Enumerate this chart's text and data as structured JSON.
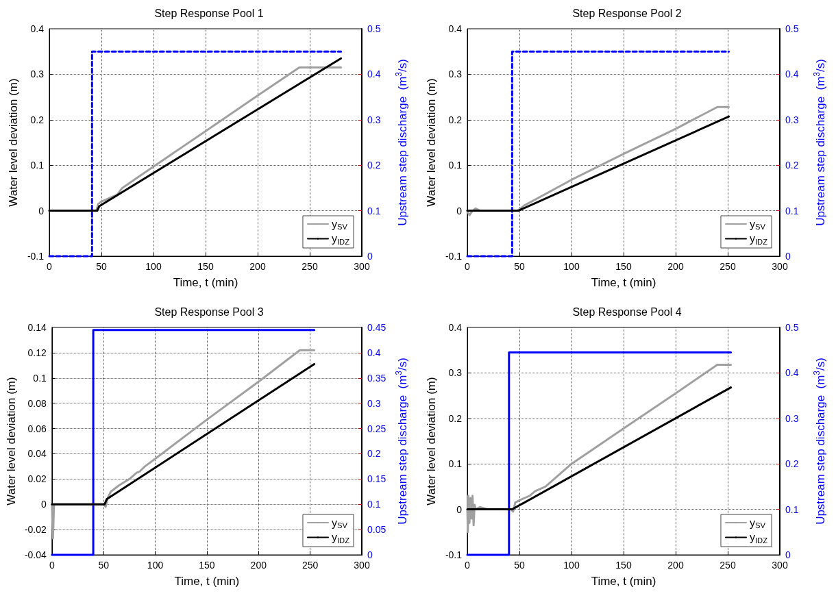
{
  "chart_data": [
    {
      "type": "line",
      "title": "Step Response Pool 1",
      "xlabel": "Time, t (min)",
      "ylabel": "Water level deviation (m)",
      "y2label": "Upstream step discharge  (m$^{3}$/s)",
      "xlim": [
        0,
        300
      ],
      "xticks": [
        0,
        50,
        100,
        150,
        200,
        250,
        300
      ],
      "ylim": [
        -0.1,
        0.4
      ],
      "yticks": [
        -0.1,
        0,
        0.1,
        0.2,
        0.3,
        0.4
      ],
      "y2lim": [
        0,
        0.5
      ],
      "y2ticks": [
        0,
        0.1,
        0.2,
        0.3,
        0.4,
        0.5
      ],
      "grid": true,
      "legend": "bottom right",
      "marker": "none",
      "series": [
        {
          "name": "y$_{SV}$",
          "color": "#a0a0a0",
          "x": [
            0,
            45,
            47,
            50,
            60,
            65,
            70,
            100,
            150,
            200,
            240,
            280
          ],
          "values": [
            0,
            0,
            0.015,
            0.02,
            0.03,
            0.035,
            0.05,
            0.097,
            0.175,
            0.253,
            0.315,
            0.315
          ]
        },
        {
          "name": "y$_{IDZ}$",
          "color": "#000000",
          "x": [
            0,
            46,
            48,
            280
          ],
          "values": [
            0,
            0,
            0.01,
            0.335
          ]
        },
        {
          "color": "#0000ff",
          "axis": "y2",
          "line_style": "dashed",
          "x": [
            0,
            41,
            41,
            280
          ],
          "values": [
            0,
            0,
            0.45,
            0.45
          ]
        }
      ]
    },
    {
      "type": "line",
      "title": "Step Response Pool 2",
      "xlabel": "Time, t (min)",
      "ylabel": "Water level deviation (m)",
      "y2label": "Upstream step discharge  (m$^{3}$/s)",
      "xlim": [
        0,
        300
      ],
      "xticks": [
        0,
        50,
        100,
        150,
        200,
        250,
        300
      ],
      "ylim": [
        -0.1,
        0.4
      ],
      "yticks": [
        -0.1,
        0,
        0.1,
        0.2,
        0.3,
        0.4
      ],
      "y2lim": [
        0,
        0.5
      ],
      "y2ticks": [
        0,
        0.1,
        0.2,
        0.3,
        0.4,
        0.5
      ],
      "grid": true,
      "legend": "bottom right",
      "marker": "none",
      "series": [
        {
          "name": "y$_{SV}$",
          "color": "#a0a0a0",
          "x": [
            0,
            2,
            5,
            8,
            12,
            48,
            55,
            60,
            100,
            150,
            200,
            240,
            251
          ],
          "values": [
            0,
            -0.01,
            0,
            0.005,
            0,
            0,
            0.012,
            0.018,
            0.068,
            0.125,
            0.18,
            0.228,
            0.228
          ]
        },
        {
          "name": "y$_{IDZ}$",
          "color": "#000000",
          "x": [
            0,
            49,
            251
          ],
          "values": [
            0,
            0,
            0.207
          ]
        },
        {
          "color": "#0000ff",
          "axis": "y2",
          "line_style": "dashed",
          "x": [
            0,
            43,
            43,
            251
          ],
          "values": [
            0,
            0,
            0.45,
            0.45
          ]
        }
      ]
    },
    {
      "type": "line",
      "title": "Step Response Pool 3",
      "xlabel": "Time, t (min)",
      "ylabel": "Water level deviation (m)",
      "y2label": "Upstream step discharge  (m$^{3}$/s)",
      "xlim": [
        0,
        300
      ],
      "xticks": [
        0,
        50,
        100,
        150,
        200,
        250,
        300
      ],
      "ylim": [
        -0.04,
        0.14
      ],
      "yticks": [
        -0.04,
        -0.02,
        0,
        0.02,
        0.04,
        0.06,
        0.08,
        0.1,
        0.12,
        0.14
      ],
      "y2lim": [
        0,
        0.45
      ],
      "y2ticks": [
        0,
        0.05,
        0.1,
        0.15,
        0.2,
        0.25,
        0.3,
        0.35,
        0.4,
        0.45
      ],
      "grid": true,
      "legend": "bottom right",
      "marker": "none",
      "series": [
        {
          "name": "y$_{SV}$",
          "color": "#a0a0a0",
          "x": [
            0,
            1,
            2,
            50,
            52,
            54,
            57,
            65,
            75,
            82,
            85,
            90,
            100,
            150,
            200,
            240,
            254
          ],
          "values": [
            0,
            -0.027,
            0,
            0,
            -0.002,
            0.005,
            0.01,
            0.015,
            0.02,
            0.025,
            0.026,
            0.03,
            0.036,
            0.067,
            0.097,
            0.122,
            0.122
          ]
        },
        {
          "name": "y$_{IDZ}$",
          "color": "#000000",
          "x": [
            0,
            51,
            53,
            254
          ],
          "values": [
            0,
            0,
            0.004,
            0.111
          ]
        },
        {
          "color": "#0000ff",
          "axis": "y2",
          "line_style": "solid",
          "x": [
            0,
            40,
            40,
            254
          ],
          "values": [
            0,
            0,
            0.445,
            0.445
          ]
        }
      ]
    },
    {
      "type": "line",
      "title": "Step Response Pool 4",
      "xlabel": "Time, t (min)",
      "ylabel": "Water level deviation (m)",
      "y2label": "Upstream step discharge  (m$^{3}$/s)",
      "xlim": [
        0,
        300
      ],
      "xticks": [
        0,
        50,
        100,
        150,
        200,
        250,
        300
      ],
      "ylim": [
        -0.1,
        0.4
      ],
      "yticks": [
        -0.1,
        0,
        0.1,
        0.2,
        0.3,
        0.4
      ],
      "y2lim": [
        0,
        0.5
      ],
      "y2ticks": [
        0,
        0.1,
        0.2,
        0.3,
        0.4,
        0.5
      ],
      "grid": true,
      "legend": "bottom right",
      "marker": "none",
      "series": [
        {
          "name": "y$_{SV}$",
          "color": "#a0a0a0",
          "x": [
            0,
            0.5,
            1,
            2,
            3,
            4,
            5,
            6,
            7,
            8,
            12,
            20,
            42,
            44,
            46,
            50,
            55,
            60,
            65,
            75,
            100,
            150,
            200,
            240,
            253
          ],
          "values": [
            0,
            -0.05,
            0.03,
            -0.03,
            0.025,
            -0.02,
            0.03,
            -0.035,
            0.01,
            0,
            0.005,
            0,
            0,
            -0.005,
            0.015,
            0.02,
            0.025,
            0.03,
            0.04,
            0.05,
            0.1,
            0.178,
            0.255,
            0.318,
            0.318
          ]
        },
        {
          "name": "y$_{IDZ}$",
          "color": "#000000",
          "x": [
            0,
            43,
            253
          ],
          "values": [
            0,
            0,
            0.268
          ]
        },
        {
          "color": "#0000ff",
          "axis": "y2",
          "line_style": "solid",
          "x": [
            0,
            40,
            40,
            253
          ],
          "values": [
            0,
            0,
            0.445,
            0.445
          ]
        }
      ]
    }
  ]
}
